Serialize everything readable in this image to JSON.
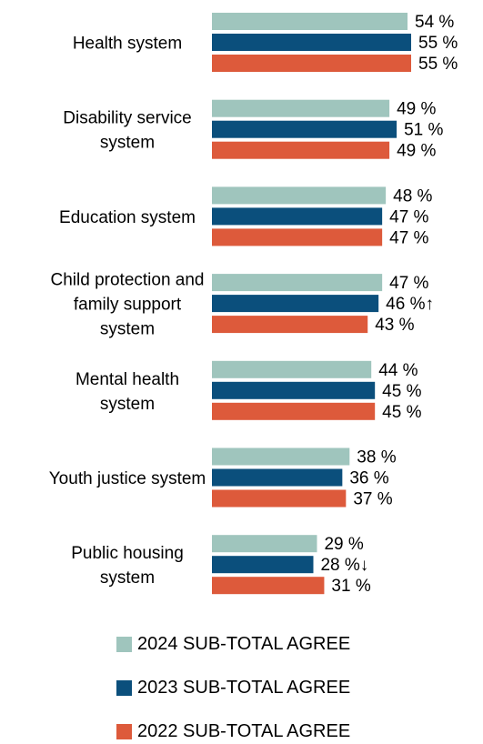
{
  "chart_data": {
    "type": "bar",
    "orientation": "horizontal",
    "categories": [
      "Health system",
      "Disability service system",
      "Education system",
      "Child protection and family support system",
      "Mental health system",
      "Youth justice system",
      "Public housing system"
    ],
    "category_label_lines": [
      [
        "Health system"
      ],
      [
        "Disability service",
        "system"
      ],
      [
        "Education system"
      ],
      [
        "Child protection and",
        "family support",
        "system"
      ],
      [
        "Mental health",
        "system"
      ],
      [
        "Youth justice system"
      ],
      [
        "Public housing",
        "system"
      ]
    ],
    "series": [
      {
        "name": "2024 SUB-TOTAL AGREE",
        "color": "#9fc5bd",
        "values": [
          54,
          49,
          48,
          47,
          44,
          38,
          29
        ]
      },
      {
        "name": "2023 SUB-TOTAL AGREE",
        "color": "#0b4f7c",
        "values": [
          55,
          51,
          47,
          46,
          45,
          36,
          28
        ]
      },
      {
        "name": "2022 SUB-TOTAL AGREE",
        "color": "#dd5a3b",
        "values": [
          55,
          49,
          47,
          43,
          45,
          37,
          31
        ]
      }
    ],
    "value_labels": [
      [
        "54 %",
        "55 %",
        "55 %"
      ],
      [
        "49 %",
        "51 %",
        "49 %"
      ],
      [
        "48 %",
        "47 %",
        "47 %"
      ],
      [
        "47 %",
        "46 %",
        "43 %"
      ],
      [
        "44 %",
        "45 %",
        "45 %"
      ],
      [
        "38 %",
        "36 %",
        "37 %"
      ],
      [
        "29 %",
        "28 %",
        "31 %"
      ]
    ],
    "annotations": [
      {
        "category": "Child protection and family support system",
        "series": "2023 SUB-TOTAL AGREE",
        "text": "↑"
      },
      {
        "category": "Public housing system",
        "series": "2023 SUB-TOTAL AGREE",
        "text": "↓"
      }
    ],
    "xlim": [
      0,
      55
    ],
    "unit": "%",
    "grid": false,
    "legend_position": "bottom"
  }
}
